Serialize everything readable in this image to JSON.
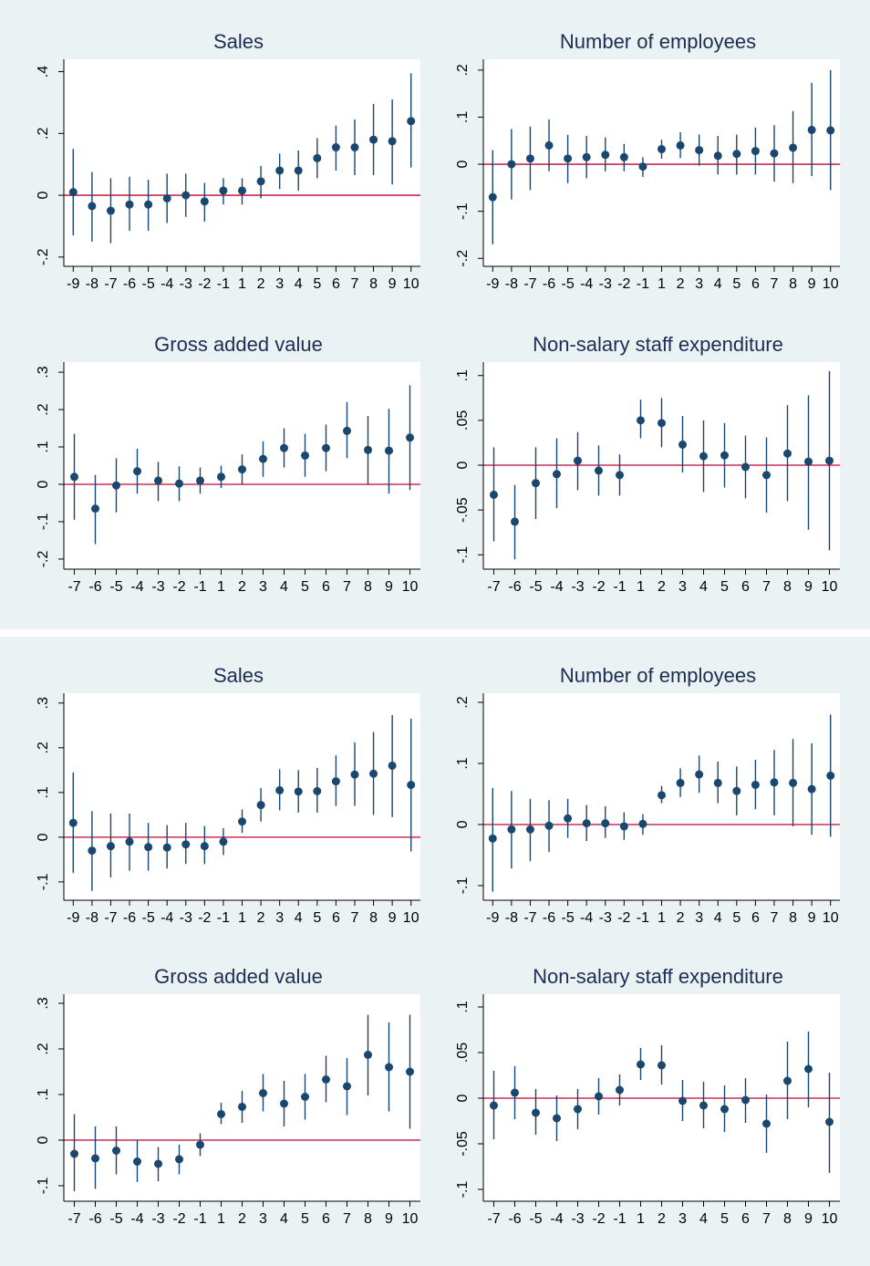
{
  "chart_data": [
    {
      "type": "errorbar",
      "title": "Sales",
      "color": "#1a476f",
      "refline": 0,
      "refline_color": "#c10534",
      "grid": false,
      "categories": [
        -9,
        -8,
        -7,
        -6,
        -5,
        -4,
        -3,
        -2,
        -1,
        1,
        2,
        3,
        4,
        5,
        6,
        7,
        8,
        9,
        10
      ],
      "values": [
        0.01,
        -0.035,
        -0.05,
        -0.03,
        -0.03,
        -0.01,
        0.0,
        -0.02,
        0.015,
        0.015,
        0.045,
        0.08,
        0.08,
        0.12,
        0.155,
        0.155,
        0.18,
        0.175,
        0.24
      ],
      "lower": [
        -0.13,
        -0.15,
        -0.155,
        -0.115,
        -0.115,
        -0.09,
        -0.07,
        -0.085,
        -0.03,
        -0.03,
        -0.01,
        0.02,
        0.015,
        0.055,
        0.08,
        0.065,
        0.065,
        0.035,
        0.09
      ],
      "upper": [
        0.15,
        0.075,
        0.055,
        0.06,
        0.05,
        0.07,
        0.07,
        0.04,
        0.055,
        0.055,
        0.095,
        0.135,
        0.145,
        0.185,
        0.225,
        0.245,
        0.295,
        0.31,
        0.395
      ],
      "ylim": [
        -0.23,
        0.44
      ],
      "yticks": [
        {
          "value": -0.2,
          "label": "-.2"
        },
        0,
        {
          "value": 0.2,
          "label": ".2"
        },
        {
          "value": 0.4,
          "label": ".4"
        }
      ]
    },
    {
      "type": "errorbar",
      "title": "Number of employees",
      "color": "#1a476f",
      "refline": 0,
      "refline_color": "#c10534",
      "grid": false,
      "categories": [
        -9,
        -8,
        -7,
        -6,
        -5,
        -4,
        -3,
        -2,
        -1,
        1,
        2,
        3,
        4,
        5,
        6,
        7,
        8,
        9,
        10
      ],
      "values": [
        -0.07,
        0.0,
        0.012,
        0.04,
        0.012,
        0.015,
        0.02,
        0.015,
        -0.005,
        0.032,
        0.04,
        0.03,
        0.018,
        0.022,
        0.028,
        0.023,
        0.035,
        0.073,
        0.072
      ],
      "lower": [
        -0.17,
        -0.075,
        -0.055,
        -0.015,
        -0.04,
        -0.03,
        -0.015,
        -0.015,
        -0.027,
        0.012,
        0.013,
        -0.003,
        -0.022,
        -0.022,
        -0.022,
        -0.037,
        -0.04,
        -0.025,
        -0.055
      ],
      "upper": [
        0.03,
        0.075,
        0.08,
        0.095,
        0.062,
        0.06,
        0.057,
        0.043,
        0.015,
        0.052,
        0.068,
        0.063,
        0.06,
        0.063,
        0.078,
        0.083,
        0.113,
        0.173,
        0.2
      ],
      "ylim": [
        -0.217,
        0.223
      ],
      "yticks": [
        {
          "value": -0.2,
          "label": "-.2"
        },
        {
          "value": -0.1,
          "label": "-.1"
        },
        0,
        {
          "value": 0.1,
          "label": ".1"
        },
        {
          "value": 0.2,
          "label": ".2"
        }
      ]
    },
    {
      "type": "errorbar",
      "title": "Gross added value",
      "color": "#1a476f",
      "refline": 0,
      "refline_color": "#c10534",
      "grid": false,
      "categories": [
        -7,
        -6,
        -5,
        -4,
        -3,
        -2,
        -1,
        1,
        2,
        3,
        4,
        5,
        6,
        7,
        8,
        9,
        10
      ],
      "values": [
        0.02,
        -0.065,
        -0.003,
        0.035,
        0.01,
        0.002,
        0.01,
        0.02,
        0.04,
        0.068,
        0.097,
        0.077,
        0.097,
        0.143,
        0.092,
        0.09,
        0.125
      ],
      "lower": [
        -0.095,
        -0.16,
        -0.075,
        -0.025,
        -0.045,
        -0.045,
        -0.025,
        -0.01,
        0.0,
        0.02,
        0.045,
        0.02,
        0.035,
        0.07,
        0.0,
        -0.025,
        -0.015
      ],
      "upper": [
        0.135,
        0.025,
        0.07,
        0.095,
        0.06,
        0.048,
        0.045,
        0.05,
        0.08,
        0.115,
        0.15,
        0.135,
        0.16,
        0.22,
        0.183,
        0.202,
        0.265
      ],
      "ylim": [
        -0.227,
        0.327
      ],
      "yticks": [
        {
          "value": -0.2,
          "label": "-.2"
        },
        {
          "value": -0.1,
          "label": "-.1"
        },
        0,
        {
          "value": 0.1,
          "label": ".1"
        },
        {
          "value": 0.2,
          "label": ".2"
        },
        {
          "value": 0.3,
          "label": ".3"
        }
      ]
    },
    {
      "type": "errorbar",
      "title": "Non-salary staff expenditure",
      "color": "#1a476f",
      "refline": 0,
      "refline_color": "#c10534",
      "grid": false,
      "categories": [
        -7,
        -6,
        -5,
        -4,
        -3,
        -2,
        -1,
        1,
        2,
        3,
        4,
        5,
        6,
        7,
        8,
        9,
        10
      ],
      "values": [
        -0.033,
        -0.063,
        -0.02,
        -0.01,
        0.005,
        -0.006,
        -0.011,
        0.05,
        0.047,
        0.023,
        0.01,
        0.011,
        -0.002,
        -0.011,
        0.013,
        0.004,
        0.005
      ],
      "lower": [
        -0.085,
        -0.105,
        -0.06,
        -0.048,
        -0.028,
        -0.034,
        -0.034,
        0.03,
        0.02,
        -0.008,
        -0.03,
        -0.025,
        -0.037,
        -0.053,
        -0.04,
        -0.072,
        -0.095
      ],
      "upper": [
        0.02,
        -0.022,
        0.02,
        0.03,
        0.037,
        0.022,
        0.012,
        0.073,
        0.075,
        0.055,
        0.05,
        0.047,
        0.033,
        0.031,
        0.067,
        0.078,
        0.105
      ],
      "ylim": [
        -0.116,
        0.115
      ],
      "yticks": [
        {
          "value": -0.1,
          "label": "-.1"
        },
        {
          "value": -0.05,
          "label": "-.05"
        },
        0,
        {
          "value": 0.05,
          "label": ".05"
        },
        {
          "value": 0.1,
          "label": ".1"
        }
      ]
    },
    {
      "type": "errorbar",
      "title": "Sales",
      "color": "#1a476f",
      "refline": 0,
      "refline_color": "#c10534",
      "grid": false,
      "categories": [
        -9,
        -8,
        -7,
        -6,
        -5,
        -4,
        -3,
        -2,
        -1,
        1,
        2,
        3,
        4,
        5,
        6,
        7,
        8,
        9,
        10
      ],
      "values": [
        0.032,
        -0.03,
        -0.02,
        -0.01,
        -0.022,
        -0.023,
        -0.016,
        -0.02,
        -0.01,
        0.035,
        0.072,
        0.105,
        0.102,
        0.103,
        0.125,
        0.14,
        0.142,
        0.16,
        0.117
      ],
      "lower": [
        -0.08,
        -0.12,
        -0.09,
        -0.075,
        -0.075,
        -0.07,
        -0.06,
        -0.06,
        -0.04,
        0.01,
        0.035,
        0.06,
        0.055,
        0.055,
        0.07,
        0.07,
        0.05,
        0.045,
        -0.032
      ],
      "upper": [
        0.145,
        0.058,
        0.053,
        0.053,
        0.032,
        0.027,
        0.032,
        0.025,
        0.02,
        0.062,
        0.11,
        0.152,
        0.15,
        0.155,
        0.183,
        0.212,
        0.235,
        0.273,
        0.265
      ],
      "ylim": [
        -0.141,
        0.322
      ],
      "yticks": [
        {
          "value": -0.1,
          "label": "-.1"
        },
        0,
        {
          "value": 0.1,
          "label": ".1"
        },
        {
          "value": 0.2,
          "label": ".2"
        },
        {
          "value": 0.3,
          "label": ".3"
        }
      ]
    },
    {
      "type": "errorbar",
      "title": "Number of employees",
      "color": "#1a476f",
      "refline": 0,
      "refline_color": "#c10534",
      "grid": false,
      "categories": [
        -9,
        -8,
        -7,
        -6,
        -5,
        -4,
        -3,
        -2,
        -1,
        1,
        2,
        3,
        4,
        5,
        6,
        7,
        8,
        9,
        10
      ],
      "values": [
        -0.023,
        -0.008,
        -0.008,
        -0.002,
        0.01,
        0.002,
        0.002,
        -0.003,
        0.001,
        0.048,
        0.068,
        0.082,
        0.068,
        0.055,
        0.065,
        0.069,
        0.068,
        0.058,
        0.08
      ],
      "lower": [
        -0.11,
        -0.072,
        -0.06,
        -0.045,
        -0.022,
        -0.027,
        -0.022,
        -0.025,
        -0.017,
        0.035,
        0.045,
        0.052,
        0.035,
        0.015,
        0.025,
        0.015,
        -0.003,
        -0.017,
        -0.02
      ],
      "upper": [
        0.06,
        0.055,
        0.042,
        0.04,
        0.042,
        0.032,
        0.03,
        0.02,
        0.017,
        0.063,
        0.092,
        0.113,
        0.103,
        0.095,
        0.106,
        0.122,
        0.14,
        0.133,
        0.18
      ],
      "ylim": [
        -0.124,
        0.215
      ],
      "yticks": [
        {
          "value": -0.1,
          "label": "-.1"
        },
        0,
        {
          "value": 0.1,
          "label": ".1"
        },
        {
          "value": 0.2,
          "label": ".2"
        }
      ]
    },
    {
      "type": "errorbar",
      "title": "Gross added value",
      "color": "#1a476f",
      "refline": 0,
      "refline_color": "#c10534",
      "grid": false,
      "categories": [
        -7,
        -6,
        -5,
        -4,
        -3,
        -2,
        -1,
        1,
        2,
        3,
        4,
        5,
        6,
        7,
        8,
        9,
        10
      ],
      "values": [
        -0.03,
        -0.04,
        -0.023,
        -0.047,
        -0.052,
        -0.042,
        -0.01,
        0.057,
        0.073,
        0.103,
        0.08,
        0.095,
        0.133,
        0.118,
        0.187,
        0.16,
        0.15
      ],
      "lower": [
        -0.112,
        -0.107,
        -0.075,
        -0.092,
        -0.09,
        -0.075,
        -0.035,
        0.035,
        0.038,
        0.063,
        0.03,
        0.045,
        0.083,
        0.055,
        0.098,
        0.063,
        0.025
      ],
      "upper": [
        0.057,
        0.03,
        0.03,
        0.0,
        -0.015,
        -0.01,
        0.015,
        0.082,
        0.108,
        0.145,
        0.13,
        0.145,
        0.185,
        0.18,
        0.275,
        0.258,
        0.275
      ],
      "ylim": [
        -0.134,
        0.32
      ],
      "yticks": [
        {
          "value": -0.1,
          "label": "-.1"
        },
        0,
        {
          "value": 0.1,
          "label": ".1"
        },
        {
          "value": 0.2,
          "label": ".2"
        },
        {
          "value": 0.3,
          "label": ".3"
        }
      ]
    },
    {
      "type": "errorbar",
      "title": "Non-salary staff expenditure",
      "color": "#1a476f",
      "refline": 0,
      "refline_color": "#c10534",
      "grid": false,
      "categories": [
        -7,
        -6,
        -5,
        -4,
        -3,
        -2,
        -1,
        1,
        2,
        3,
        4,
        5,
        6,
        7,
        8,
        9,
        10
      ],
      "values": [
        -0.008,
        0.006,
        -0.016,
        -0.022,
        -0.012,
        0.002,
        0.009,
        0.037,
        0.036,
        -0.003,
        -0.008,
        -0.012,
        -0.002,
        -0.028,
        0.019,
        0.032,
        -0.026
      ],
      "lower": [
        -0.045,
        -0.023,
        -0.04,
        -0.047,
        -0.034,
        -0.018,
        -0.008,
        0.02,
        0.015,
        -0.025,
        -0.033,
        -0.037,
        -0.027,
        -0.06,
        -0.023,
        -0.01,
        -0.082
      ],
      "upper": [
        0.03,
        0.035,
        0.01,
        0.003,
        0.01,
        0.022,
        0.026,
        0.055,
        0.058,
        0.02,
        0.018,
        0.014,
        0.022,
        0.004,
        0.062,
        0.073,
        0.028
      ],
      "ylim": [
        -0.113,
        0.114
      ],
      "yticks": [
        {
          "value": -0.1,
          "label": "-.1"
        },
        {
          "value": -0.05,
          "label": "-.05"
        },
        0,
        {
          "value": 0.05,
          "label": ".05"
        },
        {
          "value": 0.1,
          "label": ".1"
        }
      ]
    }
  ]
}
